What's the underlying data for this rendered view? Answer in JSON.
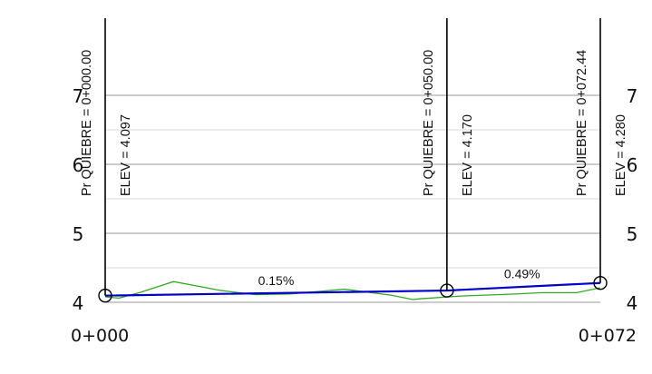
{
  "chart_data": {
    "type": "line",
    "title": "",
    "xlabel": "",
    "ylabel": "",
    "xlim": [
      0,
      72.44
    ],
    "ylim": [
      4,
      7
    ],
    "y_ticks": [
      4,
      5,
      6,
      7
    ],
    "y_tick_labels": [
      "4",
      "5",
      "6",
      "7"
    ],
    "x_tick_labels": [
      {
        "x": 0,
        "label": "0+000"
      },
      {
        "x": 72.44,
        "label": "0+072"
      }
    ],
    "grid": true,
    "series": [
      {
        "name": "",
        "role": "design-grade",
        "color": "#0000cc",
        "x": [
          0,
          50,
          72.44
        ],
        "y": [
          4.097,
          4.17,
          4.28
        ]
      },
      {
        "name": "",
        "role": "existing-ground",
        "color": "#33aa22",
        "x": [
          0,
          2,
          5,
          10,
          17,
          22,
          27,
          35,
          42,
          45,
          46,
          52,
          60,
          64,
          69,
          72.44
        ],
        "y": [
          4.08,
          4.06,
          4.14,
          4.3,
          4.17,
          4.11,
          4.12,
          4.19,
          4.1,
          4.04,
          4.05,
          4.09,
          4.12,
          4.14,
          4.14,
          4.21
        ]
      }
    ],
    "breakpoints": [
      {
        "x": 0,
        "y": 4.097,
        "station_text": "Pr QUIEBRE = 0+000.00",
        "elev_text": "ELEV =  4.097"
      },
      {
        "x": 50,
        "y": 4.17,
        "station_text": "Pr QUIEBRE = 0+050.00",
        "elev_text": "ELEV =  4.170"
      },
      {
        "x": 72.44,
        "y": 4.28,
        "station_text": "Pr QUIEBRE = 0+072.44",
        "elev_text": "ELEV =  4.280"
      }
    ],
    "grades": [
      {
        "x": 25,
        "y": 4.25,
        "label": "0.15%"
      },
      {
        "x": 61,
        "y": 4.35,
        "label": "0.49%"
      }
    ]
  }
}
